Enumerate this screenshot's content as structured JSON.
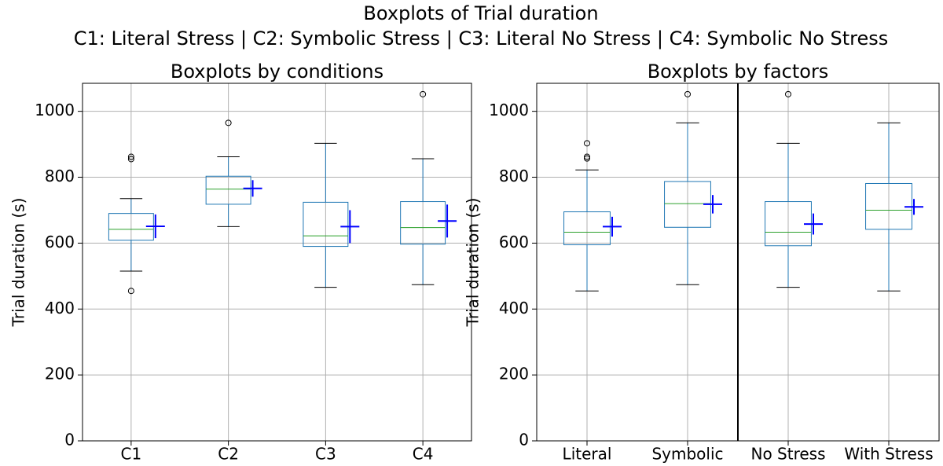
{
  "title": "Boxplots of Trial duration",
  "subtitle": "C1: Literal Stress | C2: Symbolic Stress | C3: Literal No Stress | C4: Symbolic No Stress",
  "chart_data": [
    {
      "type": "box",
      "title": "Boxplots by conditions",
      "ylabel": "Trial duration (s)",
      "categories": [
        "C1",
        "C2",
        "C3",
        "C4"
      ],
      "boxes": [
        {
          "whisker_low": 515,
          "q1": 609,
          "median": 642,
          "q3": 690,
          "whisker_high": 735,
          "outliers": [
            455,
            855,
            862
          ],
          "mean": 651,
          "mean_error": 36
        },
        {
          "whisker_low": 650,
          "q1": 718,
          "median": 764,
          "q3": 803,
          "whisker_high": 862,
          "outliers": [
            965
          ],
          "mean": 766,
          "mean_error": 25
        },
        {
          "whisker_low": 466,
          "q1": 590,
          "median": 622,
          "q3": 724,
          "whisker_high": 903,
          "outliers": [],
          "mean": 650,
          "mean_error": 50
        },
        {
          "whisker_low": 474,
          "q1": 597,
          "median": 647,
          "q3": 726,
          "whisker_high": 856,
          "outliers": [
            1052
          ],
          "mean": 667,
          "mean_error": 50
        }
      ],
      "box_color": "#1f77b4",
      "median_color": "#2ca02c",
      "mean_color": "#0000ff",
      "outlier_color": "#000000",
      "ylim": [
        0,
        1085
      ],
      "yticks": [
        0,
        200,
        400,
        600,
        800,
        1000
      ],
      "grid": true
    },
    {
      "type": "box",
      "title": "Boxplots by factors",
      "ylabel": "Trial duration (s)",
      "categories": [
        "Literal",
        "Symbolic",
        "No Stress",
        "With Stress"
      ],
      "boxes": [
        {
          "whisker_low": 455,
          "q1": 595,
          "median": 633,
          "q3": 695,
          "whisker_high": 822,
          "outliers": [
            857,
            862,
            903
          ],
          "mean": 650,
          "mean_error": 30
        },
        {
          "whisker_low": 474,
          "q1": 648,
          "median": 720,
          "q3": 787,
          "whisker_high": 965,
          "outliers": [
            1052
          ],
          "mean": 718,
          "mean_error": 28
        },
        {
          "whisker_low": 466,
          "q1": 592,
          "median": 633,
          "q3": 726,
          "whisker_high": 903,
          "outliers": [
            1052
          ],
          "mean": 658,
          "mean_error": 32
        },
        {
          "whisker_low": 455,
          "q1": 642,
          "median": 700,
          "q3": 781,
          "whisker_high": 965,
          "outliers": [],
          "mean": 710,
          "mean_error": 24
        }
      ],
      "box_color": "#1f77b4",
      "median_color": "#2ca02c",
      "mean_color": "#0000ff",
      "outlier_color": "#000000",
      "ylim": [
        0,
        1085
      ],
      "yticks": [
        0,
        200,
        400,
        600,
        800,
        1000
      ],
      "grid": true
    }
  ]
}
